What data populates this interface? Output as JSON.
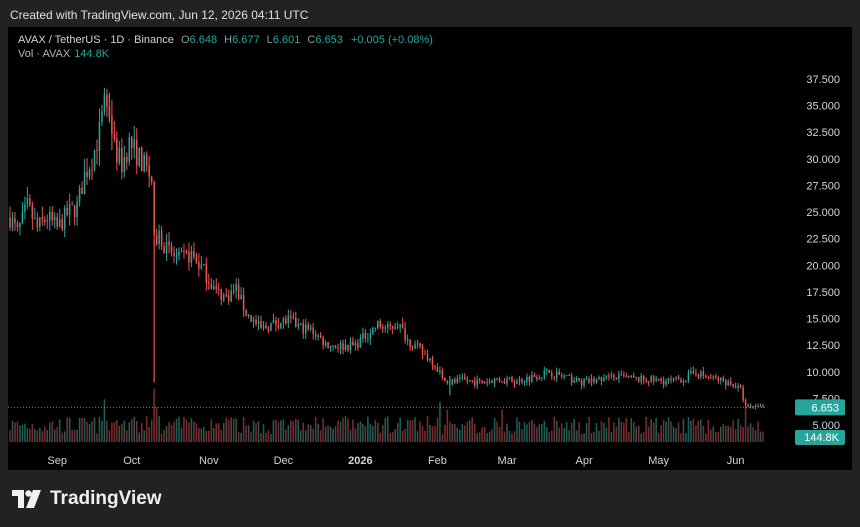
{
  "banner": "Created with TradingView.com, Jun 12, 2026 04:11 UTC",
  "brand": {
    "name": "TradingView"
  },
  "legend": {
    "symbol": "AVAX / TetherUS · 1D · Binance",
    "o_label": "O",
    "o": "6.648",
    "h_label": "H",
    "h": "6.677",
    "l_label": "L",
    "l": "6.601",
    "c_label": "C",
    "c": "6.653",
    "change": "+0.005 (+0.08%)",
    "vol_label": "Vol · AVAX",
    "vol_value": "144.8K"
  },
  "colors": {
    "up": "#26a69a",
    "down": "#ef5350",
    "vol_up": "#1f5f58",
    "vol_down": "#7a2d2f",
    "background": "#000000",
    "page": "#222222"
  },
  "chart_data": {
    "type": "candlestick",
    "title": "AVAX / TetherUS · 1D · Binance",
    "ylim": [
      5.0,
      37.5
    ],
    "y_ticks": [
      "37.500",
      "35.000",
      "32.500",
      "30.000",
      "27.500",
      "25.000",
      "22.500",
      "20.000",
      "17.500",
      "15.000",
      "12.500",
      "10.000",
      "7.500",
      "5.000"
    ],
    "x_ticks": [
      {
        "label": "Sep",
        "date": "2025-09-01"
      },
      {
        "label": "Oct",
        "date": "2025-10-01"
      },
      {
        "label": "Nov",
        "date": "2025-11-01"
      },
      {
        "label": "Dec",
        "date": "2025-12-01"
      },
      {
        "label": "2026",
        "date": "2026-01-01",
        "bold": true
      },
      {
        "label": "Feb",
        "date": "2026-02-01"
      },
      {
        "label": "Mar",
        "date": "2026-03-01"
      },
      {
        "label": "Apr",
        "date": "2026-04-01"
      },
      {
        "label": "May",
        "date": "2026-05-01"
      },
      {
        "label": "Jun",
        "date": "2026-06-01"
      }
    ],
    "start_date": "2025-08-13",
    "end_date": "2026-06-12",
    "price_path": [
      [
        "2025-08-13",
        24.5
      ],
      [
        "2025-08-16",
        23.0
      ],
      [
        "2025-08-20",
        25.5
      ],
      [
        "2025-08-24",
        23.5
      ],
      [
        "2025-08-28",
        24.5
      ],
      [
        "2025-09-01",
        23.5
      ],
      [
        "2025-09-05",
        24.8
      ],
      [
        "2025-09-09",
        25.5
      ],
      [
        "2025-09-12",
        28.5
      ],
      [
        "2025-09-15",
        30.0
      ],
      [
        "2025-09-18",
        32.5
      ],
      [
        "2025-09-20",
        35.0
      ],
      [
        "2025-09-22",
        34.5
      ],
      [
        "2025-09-24",
        31.0
      ],
      [
        "2025-09-27",
        29.5
      ],
      [
        "2025-09-30",
        31.5
      ],
      [
        "2025-10-03",
        30.5
      ],
      [
        "2025-10-07",
        29.0
      ],
      [
        "2025-10-09",
        28.0
      ],
      [
        "2025-10-10",
        22.0
      ],
      [
        "2025-10-12",
        23.0
      ],
      [
        "2025-10-15",
        21.5
      ],
      [
        "2025-10-20",
        20.5
      ],
      [
        "2025-10-25",
        21.0
      ],
      [
        "2025-10-30",
        19.5
      ],
      [
        "2025-11-04",
        17.5
      ],
      [
        "2025-11-08",
        17.0
      ],
      [
        "2025-11-12",
        17.8
      ],
      [
        "2025-11-16",
        15.5
      ],
      [
        "2025-11-22",
        14.0
      ],
      [
        "2025-11-28",
        14.6
      ],
      [
        "2025-12-03",
        14.8
      ],
      [
        "2025-12-08",
        14.2
      ],
      [
        "2025-12-13",
        13.8
      ],
      [
        "2025-12-18",
        12.6
      ],
      [
        "2025-12-24",
        12.4
      ],
      [
        "2025-12-30",
        12.5
      ],
      [
        "2026-01-04",
        13.6
      ],
      [
        "2026-01-08",
        14.4
      ],
      [
        "2026-01-12",
        14.0
      ],
      [
        "2026-01-16",
        14.6
      ],
      [
        "2026-01-20",
        13.0
      ],
      [
        "2026-01-25",
        12.0
      ],
      [
        "2026-01-30",
        11.0
      ],
      [
        "2026-02-03",
        9.6
      ],
      [
        "2026-02-06",
        9.0
      ],
      [
        "2026-02-12",
        9.2
      ],
      [
        "2026-02-18",
        9.0
      ],
      [
        "2026-02-25",
        9.3
      ],
      [
        "2026-03-05",
        9.1
      ],
      [
        "2026-03-12",
        9.6
      ],
      [
        "2026-03-18",
        10.0
      ],
      [
        "2026-03-24",
        9.5
      ],
      [
        "2026-03-31",
        9.0
      ],
      [
        "2026-04-08",
        9.3
      ],
      [
        "2026-04-15",
        9.5
      ],
      [
        "2026-04-22",
        9.3
      ],
      [
        "2026-04-30",
        9.2
      ],
      [
        "2026-05-06",
        9.1
      ],
      [
        "2026-05-12",
        9.4
      ],
      [
        "2026-05-16",
        10.0
      ],
      [
        "2026-05-20",
        9.5
      ],
      [
        "2026-05-26",
        9.2
      ],
      [
        "2026-05-31",
        8.8
      ],
      [
        "2026-06-03",
        8.3
      ],
      [
        "2026-06-05",
        6.7
      ],
      [
        "2026-06-08",
        6.55
      ],
      [
        "2026-06-12",
        6.653
      ]
    ],
    "last_price": "6.653",
    "last_volume": "144.8K",
    "volume_spikes": [
      [
        "2025-09-20",
        1.7
      ],
      [
        "2025-10-10",
        2.4
      ],
      [
        "2025-10-11",
        1.5
      ],
      [
        "2026-02-02",
        1.6
      ],
      [
        "2026-02-05",
        1.4
      ],
      [
        "2026-02-27",
        1.3
      ],
      [
        "2026-04-11",
        1.1
      ],
      [
        "2026-06-05",
        1.3
      ]
    ],
    "grid": false,
    "legend_position": "top-left"
  }
}
